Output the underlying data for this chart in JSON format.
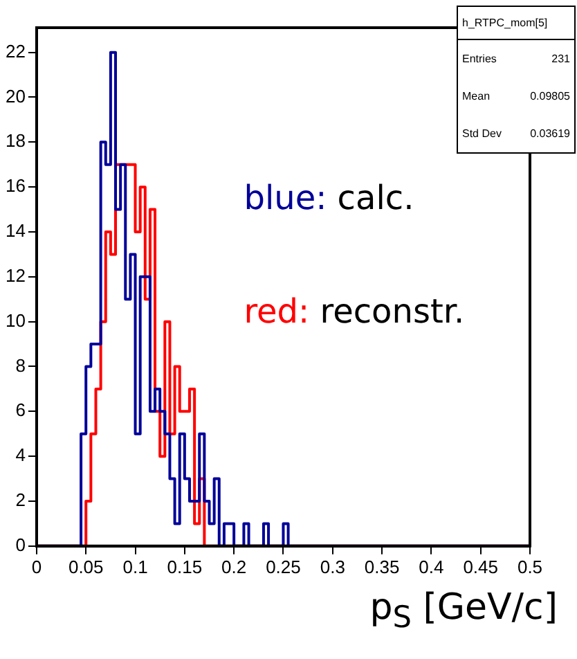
{
  "chart_data": {
    "type": "histogram",
    "xlabel": "p$_{S}$ [GeV/c]",
    "bins": [
      0,
      0.005,
      0.01,
      0.015,
      0.02,
      0.025,
      0.03,
      0.035,
      0.04,
      0.045,
      0.05,
      0.055,
      0.06,
      0.065,
      0.07,
      0.075,
      0.08,
      0.085,
      0.09,
      0.095,
      0.1,
      0.105,
      0.11,
      0.115,
      0.12,
      0.125,
      0.13,
      0.135,
      0.14,
      0.145,
      0.15,
      0.155,
      0.16,
      0.165,
      0.17,
      0.175,
      0.18,
      0.185,
      0.19,
      0.195,
      0.2,
      0.205,
      0.21,
      0.215,
      0.22,
      0.225,
      0.23,
      0.235,
      0.24,
      0.245,
      0.25,
      0.255,
      0.26,
      0.265,
      0.27,
      0.275,
      0.28,
      0.285,
      0.29,
      0.295,
      0.3,
      0.305,
      0.31,
      0.315,
      0.32,
      0.325,
      0.33,
      0.335,
      0.34,
      0.345,
      0.35,
      0.355,
      0.36,
      0.365,
      0.37,
      0.375,
      0.38,
      0.385,
      0.39,
      0.395,
      0.4,
      0.405,
      0.41,
      0.415,
      0.42,
      0.425,
      0.43,
      0.435,
      0.44,
      0.445,
      0.45,
      0.455,
      0.46,
      0.465,
      0.47,
      0.475,
      0.48,
      0.485,
      0.49,
      0.495,
      0.5
    ],
    "series": [
      {
        "name": "blue: calc.",
        "color": "#000099",
        "values": [
          0,
          0,
          0,
          0,
          0,
          0,
          0,
          0,
          0,
          5,
          8,
          9,
          9,
          18,
          17,
          22,
          15,
          17,
          11,
          13,
          5,
          12,
          12,
          6,
          7,
          6,
          5,
          3,
          1,
          5,
          3,
          2,
          2,
          5,
          2,
          1,
          3,
          0,
          1,
          1,
          0,
          0,
          1,
          0,
          0,
          0,
          1,
          0,
          0,
          0,
          1,
          0,
          0,
          0,
          0,
          0,
          0,
          0,
          0,
          0,
          0,
          0,
          0,
          0,
          0,
          0,
          0,
          0,
          0,
          0,
          0,
          0,
          0,
          0,
          0,
          0,
          0,
          0,
          0,
          0,
          0,
          0,
          0,
          0,
          0,
          0,
          0,
          0,
          0,
          0,
          0,
          0,
          0,
          0,
          0,
          0,
          0,
          0,
          0,
          0
        ]
      },
      {
        "name": "red: reconstr.",
        "color": "#ff0000",
        "values": [
          0,
          0,
          0,
          0,
          0,
          0,
          0,
          0,
          0,
          0,
          2,
          5,
          7,
          10,
          14,
          13,
          17,
          17,
          17,
          17,
          14,
          16,
          11,
          15,
          6,
          4,
          10,
          5,
          8,
          6,
          6,
          7,
          1,
          3,
          0,
          0,
          0,
          0,
          0,
          0,
          0,
          0,
          0,
          0,
          0,
          0,
          0,
          0,
          0,
          0,
          0,
          0,
          0,
          0,
          0,
          0,
          0,
          0,
          0,
          0,
          0,
          0,
          0,
          0,
          0,
          0,
          0,
          0,
          0,
          0,
          0,
          0,
          0,
          0,
          0,
          0,
          0,
          0,
          0,
          0,
          0,
          0,
          0,
          0,
          0,
          0,
          0,
          0,
          0,
          0,
          0,
          0,
          0,
          0,
          0,
          0,
          0,
          0,
          0,
          0
        ]
      }
    ],
    "xlim": [
      0,
      0.5
    ],
    "xticks": [
      0,
      0.05,
      0.1,
      0.15,
      0.2,
      0.25,
      0.3,
      0.35,
      0.4,
      0.45,
      0.5
    ],
    "ylim": [
      0,
      23.1
    ],
    "yticks": [
      0,
      2,
      4,
      6,
      8,
      10,
      12,
      14,
      16,
      18,
      20,
      22
    ],
    "legend": "right",
    "annotations": [
      "h_RTPC_mom[5]",
      "Entries",
      "231",
      "Mean",
      "0.09805",
      "Std Dev",
      "0.03619"
    ]
  }
}
